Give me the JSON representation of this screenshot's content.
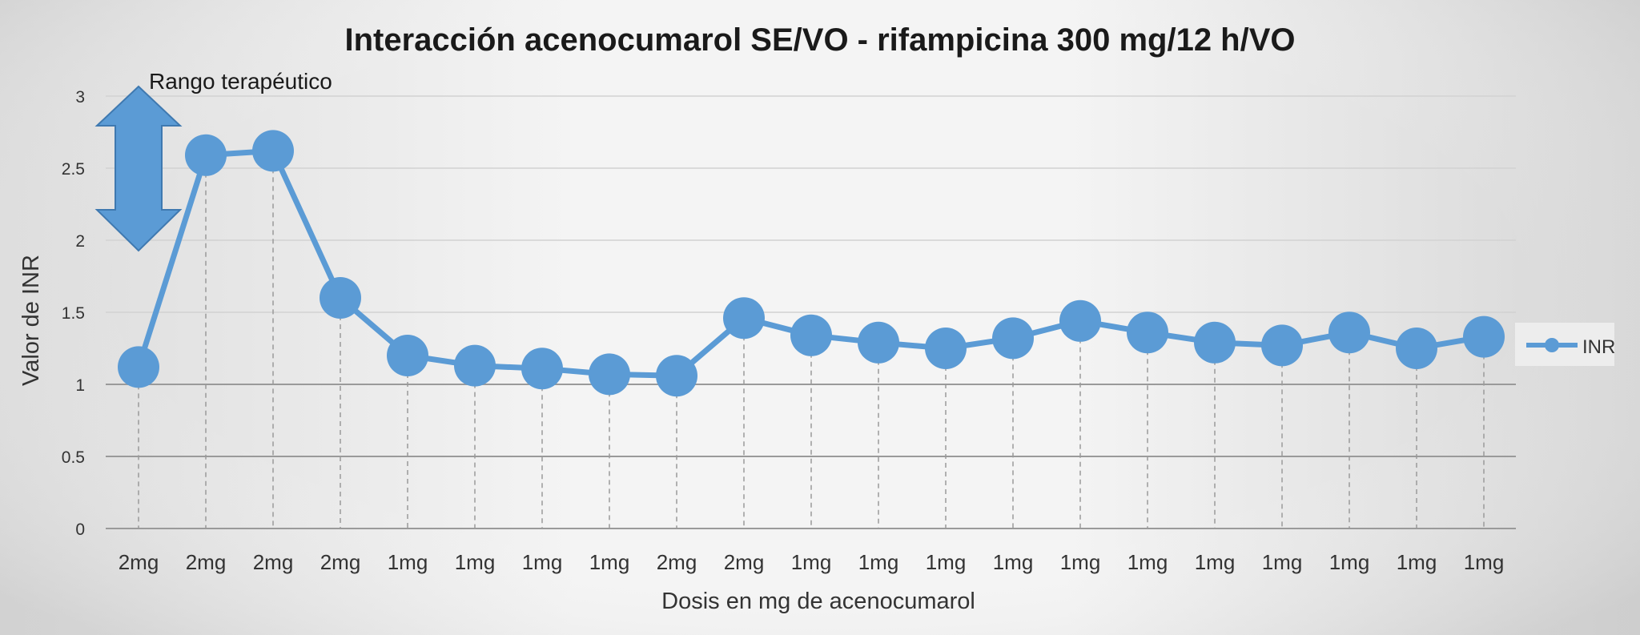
{
  "chart_data": {
    "type": "line",
    "title": "Interacción acenocumarol SE/VO - rifampicina 300 mg/12 h/VO",
    "xlabel": "Dosis en mg de acenocumarol",
    "ylabel": "Valor de INR",
    "ylim": [
      0,
      3
    ],
    "yticks": [
      "0",
      "0.5",
      "1",
      "1.5",
      "2",
      "2.5",
      "3"
    ],
    "categories": [
      "2mg",
      "2mg",
      "2mg",
      "2mg",
      "1mg",
      "1mg",
      "1mg",
      "1mg",
      "2mg",
      "2mg",
      "1mg",
      "1mg",
      "1mg",
      "1mg",
      "1mg",
      "1mg",
      "1mg",
      "1mg",
      "1mg",
      "1mg",
      "1mg"
    ],
    "series": [
      {
        "name": "INR",
        "color": "#5b9bd5",
        "values": [
          1.12,
          2.59,
          2.62,
          1.6,
          1.2,
          1.13,
          1.11,
          1.07,
          1.06,
          1.46,
          1.34,
          1.29,
          1.25,
          1.32,
          1.44,
          1.36,
          1.29,
          1.27,
          1.36,
          1.25,
          1.33
        ]
      }
    ],
    "legend_position": "right",
    "grid": true,
    "annotation": {
      "label": "Rango terapéutico",
      "range": [
        2,
        3
      ],
      "color": "#5b9bd5"
    }
  }
}
